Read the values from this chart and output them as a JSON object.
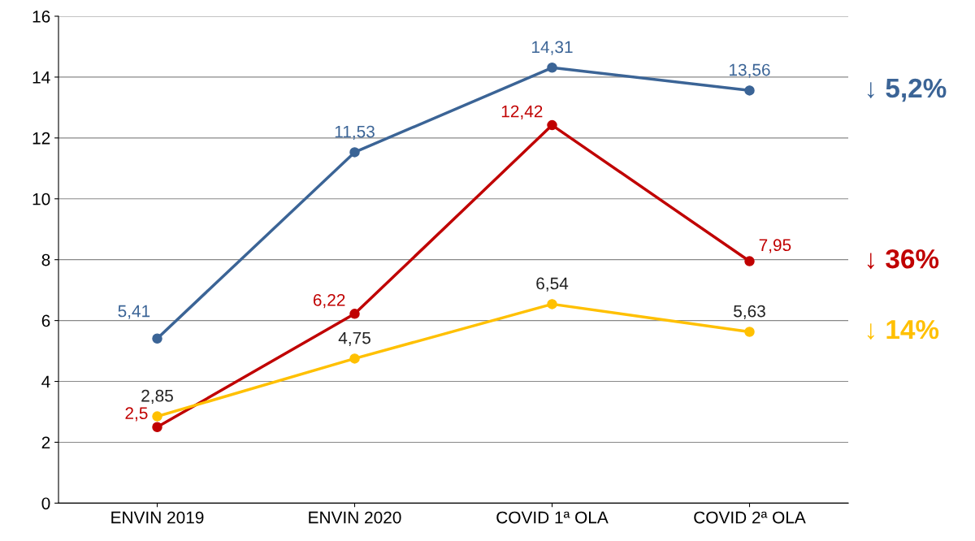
{
  "chart_data": {
    "type": "line",
    "categories": [
      "ENVIN 2019",
      "ENVIN 2020",
      "COVID 1ª OLA",
      "COVID 2ª OLA"
    ],
    "series": [
      {
        "color": "#3b6496",
        "values": [
          5.41,
          11.53,
          14.31,
          13.56
        ],
        "value_labels": [
          "5,41",
          "11,53",
          "14,31",
          "13,56"
        ]
      },
      {
        "color": "#c00000",
        "values": [
          2.5,
          6.22,
          12.42,
          7.95
        ],
        "value_labels": [
          "2,5",
          "6,22",
          "12,42",
          "7,95"
        ]
      },
      {
        "color": "#ffc000",
        "values": [
          2.85,
          4.75,
          6.54,
          5.63
        ],
        "value_labels": [
          "2,85",
          "4,75",
          "6,54",
          "5,63"
        ]
      }
    ],
    "annotations": [
      "↓ 5,2%",
      "↓ 36%",
      "↓ 14%"
    ],
    "ylim": [
      0,
      16
    ],
    "yticks": [
      0,
      2,
      4,
      6,
      8,
      10,
      12,
      14,
      16
    ],
    "grid": "y",
    "marker": "circle",
    "line_style": "solid",
    "legend": false
  }
}
